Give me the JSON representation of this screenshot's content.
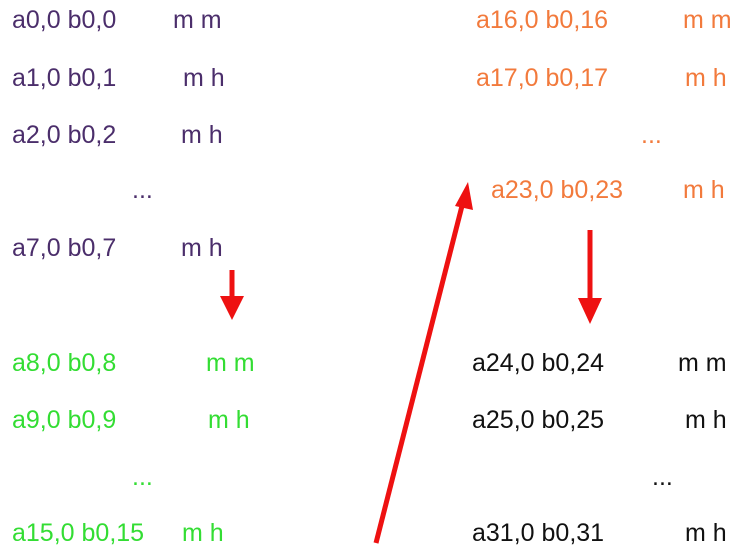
{
  "colors": {
    "group1": "#4b2e6b",
    "group2": "#33dd33",
    "group3": "#f27a3c",
    "group4": "#111111",
    "arrow": "#ee1111"
  },
  "group1": {
    "r1": {
      "ab": "a0,0 b0,0",
      "m": "m m"
    },
    "r2": {
      "ab": "a1,0 b0,1",
      "m": "m h"
    },
    "r3": {
      "ab": "a2,0 b0,2",
      "m": "m h"
    },
    "ellipsis": "...",
    "r4": {
      "ab": "a7,0 b0,7",
      "m": "m h"
    }
  },
  "group2": {
    "r1": {
      "ab": "a8,0 b0,8",
      "m": "m m"
    },
    "r2": {
      "ab": "a9,0 b0,9",
      "m": "m h"
    },
    "ellipsis": "...",
    "r3": {
      "ab": "a15,0 b0,15",
      "m": "m h"
    }
  },
  "group3": {
    "r1": {
      "ab": "a16,0 b0,16",
      "m": "m m"
    },
    "r2": {
      "ab": "a17,0 b0,17",
      "m": "m h"
    },
    "ellipsis": "...",
    "r3": {
      "ab": "a23,0 b0,23",
      "m": "m h"
    }
  },
  "group4": {
    "r1": {
      "ab": "a24,0 b0,24",
      "m": "m m"
    },
    "r2": {
      "ab": "a25,0 b0,25",
      "m": "m h"
    },
    "ellipsis": "...",
    "r3": {
      "ab": "a31,0 b0,31",
      "m": "m h"
    }
  }
}
